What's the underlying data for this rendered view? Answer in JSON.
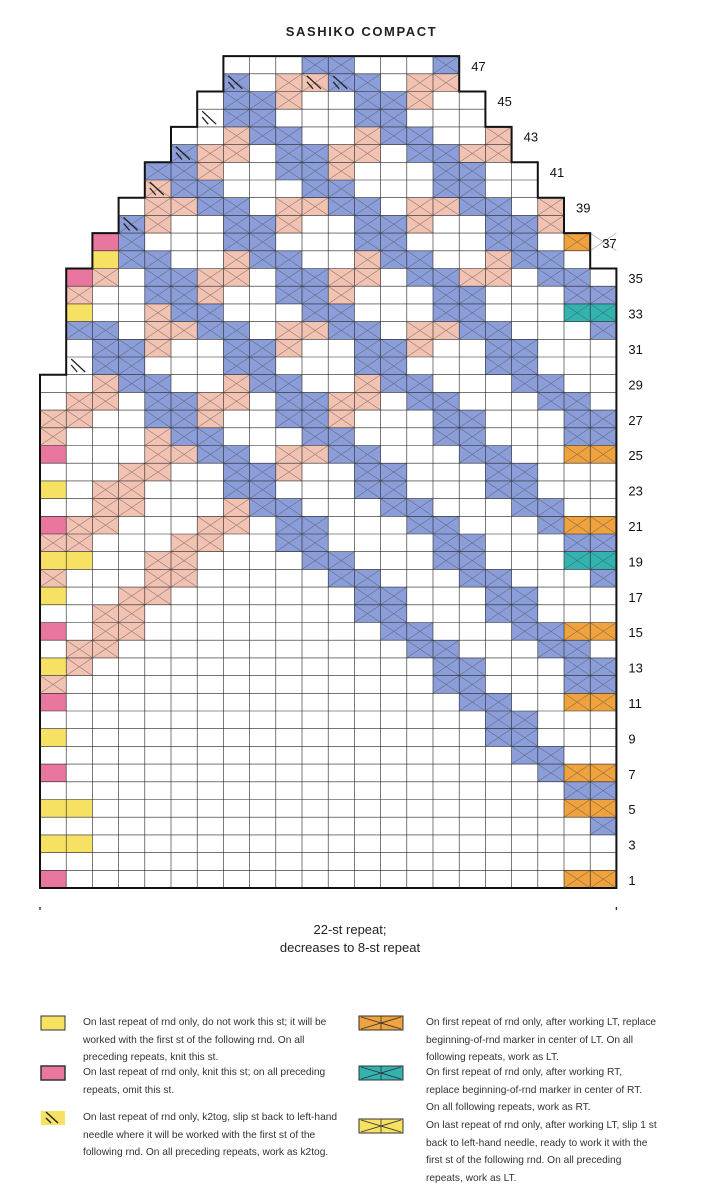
{
  "title": "SASHIKO COMPACT",
  "repeat_caption": {
    "line1": "22-st repeat;",
    "line2": "decreases to 8-st repeat"
  },
  "row_labels": [
    "1",
    "3",
    "5",
    "7",
    "9",
    "11",
    "13",
    "15",
    "17",
    "19",
    "21",
    "23",
    "25",
    "27",
    "29",
    "31",
    "33",
    "35",
    "37",
    "39",
    "41",
    "43",
    "45",
    "47"
  ],
  "colors": {
    "blue_cable": "#8b9ed9",
    "pink_cable": "#f2c2b2",
    "yellow": "#f7e163",
    "magenta": "#e8769f",
    "orange": "#efa23e",
    "teal": "#33b3b0",
    "grid_line": "#222222",
    "bracket": "#333333"
  },
  "legend": [
    {
      "swatch": "yellow-box",
      "text": "On last repeat of rnd only, do not work this st; it will be worked with the first st of the following rnd. On all preceding repeats, knit this st."
    },
    {
      "swatch": "pink-box",
      "text": "On last repeat of rnd only, knit this st; on all preceding repeats, omit this st."
    },
    {
      "swatch": "yellow-k2tog",
      "text": "On last repeat of rnd only, k2tog, slip st back to left-hand needle where it will be worked with the first st of the following rnd. On all preceding repeats, work as k2tog."
    },
    {
      "swatch": "orange-lt",
      "text": "On first repeat of rnd only, after working LT, replace beginning-of-rnd marker in center of LT. On all following repeats, work as LT."
    },
    {
      "swatch": "teal-rt",
      "text": "On first repeat of rnd only, after working RT, replace beginning-of-rnd marker in center of RT. On all following repeats, work as RT."
    },
    {
      "swatch": "yellow-lt",
      "text": "On last repeat of rnd only, after working LT, slip 1 st back to left-hand needle, ready to work it with the first st of the following rnd. On all preceding repeats, work as LT."
    }
  ]
}
